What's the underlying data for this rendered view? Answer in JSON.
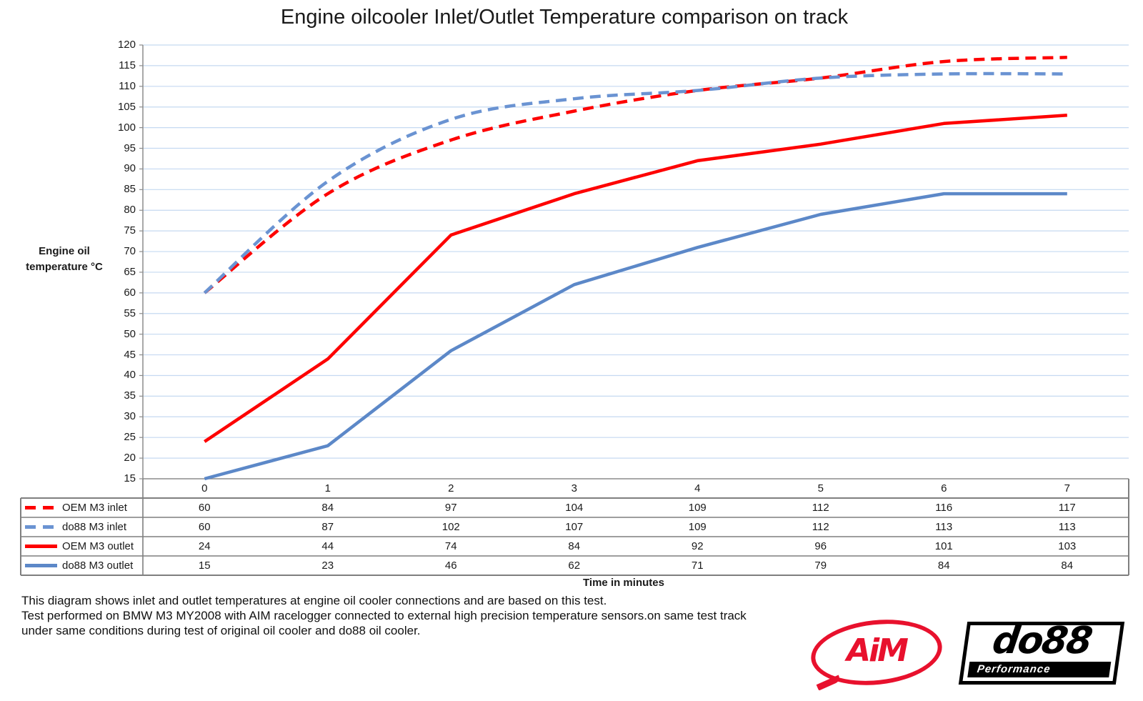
{
  "title": "Engine oilcooler Inlet/Outlet Temperature comparison on track",
  "y_axis_title": {
    "line1": "Engine oil",
    "line2": "temperature °C"
  },
  "x_axis_title": "Time in minutes",
  "footer": {
    "line1": "This diagram shows inlet and outlet temperatures at engine oil cooler connections and are based on this test.",
    "line2": "Test performed on BMW M3 MY2008 with AIM racelogger connected to external high precision temperature sensors.on same test track",
    "line3": "under same conditions during test of original oil cooler and do88 oil cooler."
  },
  "logos": {
    "aim": {
      "text": "AiM",
      "color": "#e8112d"
    },
    "do88": {
      "text": "do88",
      "subtext": "Performance",
      "color": "#000000"
    }
  },
  "colors": {
    "red_series": "#fe0000",
    "blue_dashed_series": "#6a93d2",
    "blue_solid_series": "#5c88c8",
    "gridline": "#c5d9f1",
    "axis": "#8c8c8c",
    "table_border": "#7f7f7f",
    "text": "#1a1a1a"
  },
  "chart_data": {
    "type": "line",
    "title": "Engine oilcooler Inlet/Outlet Temperature comparison on track",
    "xlabel": "Time in minutes",
    "ylabel": "Engine oil temperature °C",
    "x": [
      0,
      1,
      2,
      3,
      4,
      5,
      6,
      7
    ],
    "ylim": [
      15,
      120
    ],
    "ytick_step": 5,
    "grid": true,
    "legend_position": "data-table-left",
    "series": [
      {
        "name": "OEM M3 inlet",
        "color": "#fe0000",
        "line_style": "dashed",
        "smooth": true,
        "values": [
          60,
          84,
          97,
          104,
          109,
          112,
          116,
          117
        ]
      },
      {
        "name": "do88 M3 inlet",
        "color": "#6a93d2",
        "line_style": "dashed",
        "smooth": true,
        "values": [
          60,
          87,
          102,
          107,
          109,
          112,
          113,
          113
        ]
      },
      {
        "name": "OEM M3 outlet",
        "color": "#fe0000",
        "line_style": "solid",
        "smooth": false,
        "values": [
          24,
          44,
          74,
          84,
          92,
          96,
          101,
          103
        ]
      },
      {
        "name": "do88 M3 outlet",
        "color": "#5c88c8",
        "line_style": "solid",
        "smooth": false,
        "values": [
          15,
          23,
          46,
          62,
          71,
          79,
          84,
          84
        ]
      }
    ]
  }
}
